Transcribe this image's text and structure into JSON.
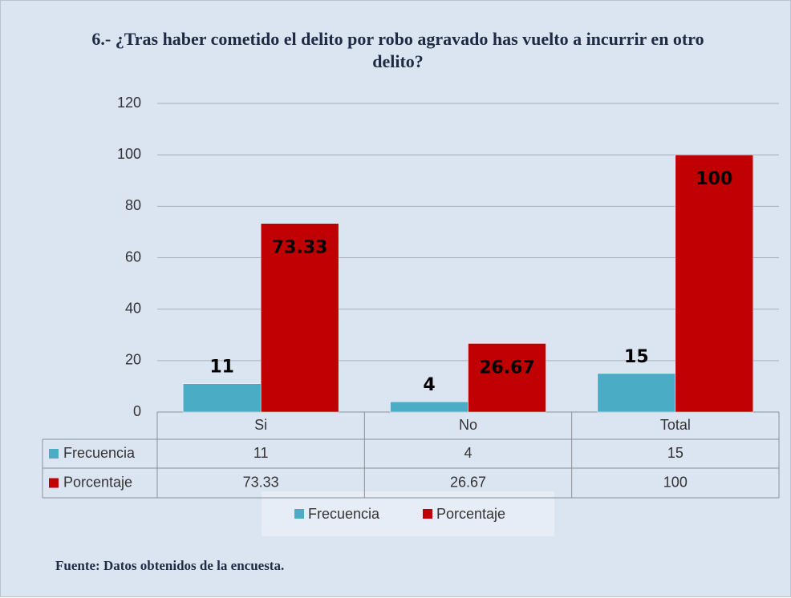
{
  "chart_data": {
    "type": "bar",
    "title": "6.- ¿Tras haber cometido el delito por robo agravado has vuelto a incurrir en otro delito?",
    "categories": [
      "Si",
      "No",
      "Total"
    ],
    "series": [
      {
        "name": "Frecuencia",
        "color": "#4bacc6",
        "values": [
          11,
          4,
          15
        ]
      },
      {
        "name": "Porcentaje",
        "color": "#c00000",
        "values": [
          73.33,
          26.67,
          100
        ]
      }
    ],
    "ylim": [
      0,
      120
    ],
    "yticks": [
      0,
      20,
      40,
      60,
      80,
      100,
      120
    ],
    "grid": true,
    "legend": "bottom",
    "source": "Fuente: Datos obtenidos de la encuesta."
  }
}
